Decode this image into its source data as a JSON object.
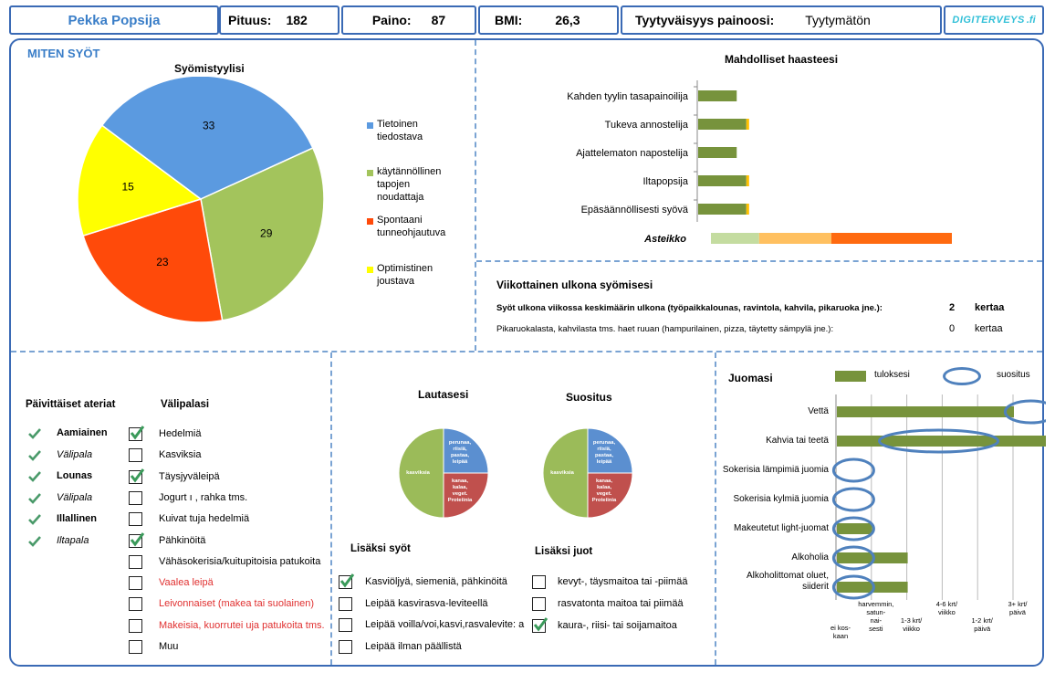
{
  "header": {
    "name": "Pekka Popsija",
    "height_label": "Pituus:",
    "height_value": "182",
    "weight_label": "Paino:",
    "weight_value": "87",
    "bmi_label": "BMI:",
    "bmi_value": "26,3",
    "satisfaction_label": "Tyytyväisyys painoosi:",
    "satisfaction_value": "Tyytymätön",
    "logo_text": "DIGITERVEYS",
    "colors": {
      "border": "#3a6ab5",
      "name": "#3a7ec8",
      "logo": "#33c0d8"
    }
  },
  "eating": {
    "section_title": "MITEN SYÖT",
    "chart_data": {
      "type": "pie",
      "title": "Syömistyylisi",
      "categories": [
        "Tietoinen tiedostava",
        "käytännöllinen tapojen noudattaja",
        "Spontaani tunneohjautuva",
        "Optimistinen joustava"
      ],
      "values": [
        33,
        29,
        23,
        15
      ],
      "colors": [
        "#5b9ae0",
        "#a3c45c",
        "#ff4a0a",
        "#ffff00"
      ],
      "legend_position": "right"
    },
    "legend": [
      {
        "line1": "Tietoinen",
        "line2": "tiedostava",
        "line3": "",
        "color": "#5b9ae0"
      },
      {
        "line1": "käytännöllinen",
        "line2": "tapojen",
        "line3": "noudattaja",
        "color": "#a3c45c"
      },
      {
        "line1": "Spontaani",
        "line2": "tunneohjautuva",
        "line3": "",
        "color": "#ff4a0a"
      },
      {
        "line1": "Optimistinen",
        "line2": "joustava",
        "line3": "",
        "color": "#ffff00"
      }
    ]
  },
  "challenges": {
    "chart_data": {
      "type": "bar",
      "title": "Mahdolliset haasteesi",
      "categories": [
        "Kahden tyylin tasapainoilija",
        "Tukeva annostelija",
        "Ajattelematon napostelija",
        "Iltapopsija",
        "Epäsäännöllisesti syövä"
      ],
      "values": [
        16,
        20,
        16,
        20,
        20
      ],
      "highlight": [
        0,
        1,
        0,
        1,
        1
      ],
      "xlim": [
        0,
        100
      ],
      "scale_label": "Asteikko",
      "scale_colors": [
        "#c4dca0",
        "#ffc060",
        "#ff6a10"
      ],
      "scale_segments": [
        20,
        30,
        50
      ],
      "colors": {
        "bar": "#77933c",
        "highlight": "#ffc000"
      }
    }
  },
  "eating_out": {
    "title": "Viikottainen ulkona syömisesi",
    "row1_label": "Syöt ulkona viikossa keskimäärin ulkona (työpaikkalounas, ravintola, kahvila, pikaruoka jne.):",
    "row1_value": "2",
    "row1_unit": "kertaa",
    "row2_label": "Pikaruokalasta, kahvilasta tms. haet ruuan (hampurilainen, pizza, täytetty sämpylä jne.):",
    "row2_value": "0",
    "row2_unit": "kertaa"
  },
  "meals": {
    "title": "Päivittäiset ateriat",
    "items": [
      {
        "label": "Aamiainen",
        "style": "bold"
      },
      {
        "label": "Välipala",
        "style": "italic"
      },
      {
        "label": "Lounas",
        "style": "bold"
      },
      {
        "label": "Välipala",
        "style": "italic"
      },
      {
        "label": "Illallinen",
        "style": "bold"
      },
      {
        "label": "Iltapala",
        "style": "italic"
      }
    ]
  },
  "snacks": {
    "title": "Välipalasi",
    "items": [
      {
        "label": "Hedelmiä",
        "checked": true,
        "red": false
      },
      {
        "label": "Kasviksia",
        "checked": false,
        "red": false
      },
      {
        "label": "Täysjyväleipä",
        "checked": true,
        "red": false
      },
      {
        "label": "Jogurt ı , rahka tms.",
        "checked": false,
        "red": false
      },
      {
        "label": "Kuivat tuja hedelmiä",
        "checked": false,
        "red": false
      },
      {
        "label": "Pähkinöitä",
        "checked": true,
        "red": false
      },
      {
        "label": "Vähäsokerisia/kuitupitoisia patukoita",
        "checked": false,
        "red": false
      },
      {
        "label": "Vaalea leipä",
        "checked": false,
        "red": true
      },
      {
        "label": "Leivonnaiset (makea tai suolainen)",
        "checked": false,
        "red": true
      },
      {
        "label": "Makeisia, kuorrutei uja patukoita tms.",
        "checked": false,
        "red": true
      },
      {
        "label": "Muu",
        "checked": false,
        "red": false
      }
    ]
  },
  "plate": {
    "title_yours": "Lautasesi",
    "title_rec": "Suositus",
    "chart_data": [
      {
        "type": "pie",
        "title": "Lautasesi",
        "categories": [
          "perunaa, riisiä, pastaa, leipää",
          "kanaa, kalaa, veget. Proteiinia",
          "kasviksia"
        ],
        "values": [
          25,
          25,
          50
        ],
        "colors": [
          "#5b8fd0",
          "#c0504d",
          "#9bbb59"
        ]
      },
      {
        "type": "pie",
        "title": "Suositus",
        "categories": [
          "perunaa, riisiä, pastaa, leipää",
          "kanaa, kalaa, veget. Proteiinia",
          "kasviksia"
        ],
        "values": [
          25,
          25,
          50
        ],
        "colors": [
          "#5b8fd0",
          "#c0504d",
          "#9bbb59"
        ]
      }
    ],
    "slice_text": {
      "carbs": [
        "perunaa,",
        "riisiä,",
        "pastaa,",
        "leipää"
      ],
      "protein": [
        "kanaa,",
        "kalaa,",
        "veget.",
        "Proteiinia"
      ],
      "veg": "kasviksia",
      "carbs_rec": [
        "perunaa,",
        "riisiä,",
        "pastaa,",
        "leipää"
      ],
      "protein_rec": [
        "kanaa,",
        "kalaa,",
        "veget.",
        "Proteiinia"
      ],
      "veg_rec": "kasviksia"
    }
  },
  "extra_eat": {
    "title": "Lisäksi syöt",
    "items": [
      {
        "label": "Kasviöljyä, siemeniä, pähkinöitä",
        "checked": true
      },
      {
        "label": "Leipää kasvirasva-leviteellä",
        "checked": false
      },
      {
        "label": "Leipää voilla/voi,kasvi,rasvalevite: a",
        "checked": false
      },
      {
        "label": "Leipää ilman päällistä",
        "checked": false
      }
    ]
  },
  "extra_drink": {
    "title": "Lisäksi juot",
    "items": [
      {
        "label": "kevyt-, täysmaitoa tai -piimää",
        "checked": false
      },
      {
        "label": "rasvatonta maitoa tai piimää",
        "checked": false
      },
      {
        "label": "kaura-, riisi- tai soijamaitoa",
        "checked": true
      }
    ]
  },
  "drinks": {
    "title": "Juomasi",
    "legend_result": "tuloksesi",
    "legend_rec": "suositus",
    "chart_data": {
      "type": "bar",
      "categories": [
        "Vettä",
        "Kahvia tai teetä",
        "Sokerisia lämpimiä juomia",
        "Sokerisia kylmiä juomia",
        "Makeutetut light-juomat",
        "Alkoholia",
        "Alkoholittomat oluet, siiderit"
      ],
      "series": [
        {
          "name": "tuloksesi",
          "values": [
            5,
            6,
            0,
            0,
            1,
            2,
            2
          ]
        },
        {
          "name": "suositus",
          "values": [
            5.5,
            2.9,
            0.5,
            0.5,
            0.5,
            0.5,
            0.5
          ]
        }
      ],
      "xlim": [
        0,
        6
      ],
      "tick_labels": [
        [
          "ei kos-",
          "kaan"
        ],
        [
          "harvemmin,",
          "satun-",
          "nai-",
          "sesti"
        ],
        [
          "1-3 krt/",
          "viikko"
        ],
        [
          "4-6 krt/",
          "viikko"
        ],
        [
          "1-2 krt/",
          "päivä"
        ],
        [
          "3+ krt/",
          "päivä"
        ]
      ],
      "colors": {
        "bar": "#77933c",
        "rec": "#4f81bd"
      }
    },
    "label_lines": [
      [
        "Vettä"
      ],
      [
        "Kahvia tai teetä"
      ],
      [
        "Sokerisia lämpimiä juomia"
      ],
      [
        "Sokerisia kylmiä juomia"
      ],
      [
        "Makeutetut light-juomat"
      ],
      [
        "Alkoholia"
      ],
      [
        "Alkoholittomat oluet,",
        "siiderit"
      ]
    ]
  }
}
